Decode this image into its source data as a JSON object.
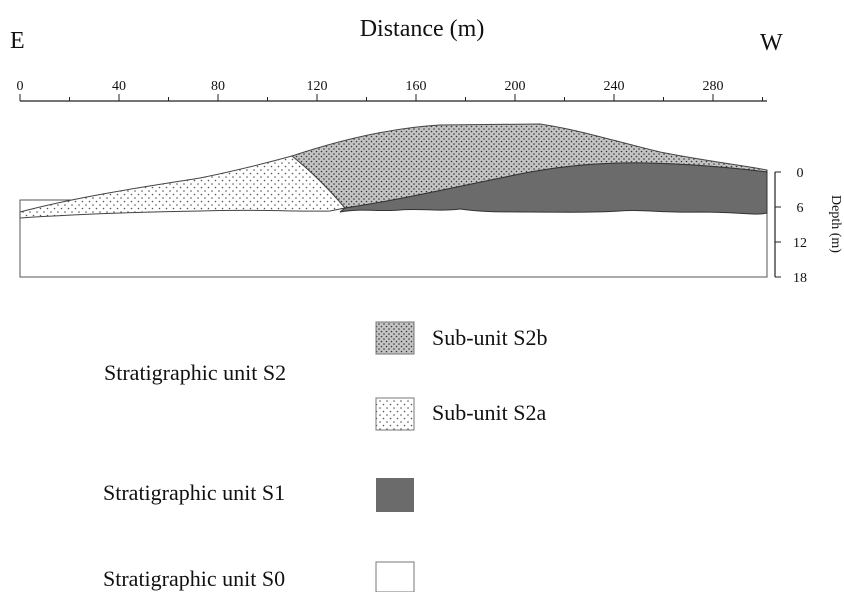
{
  "header": {
    "left": "E",
    "title": "Distance (m)",
    "right": "W"
  },
  "x_axis": {
    "ticks": [
      "0",
      "40",
      "80",
      "120",
      "160",
      "200",
      "240",
      "280"
    ]
  },
  "depth_axis": {
    "label": "Depth (m)",
    "ticks": [
      "0",
      "6",
      "12",
      "18"
    ]
  },
  "legend": [
    {
      "label": "Stratigraphic unit S2",
      "items": [
        {
          "label": "Sub-unit S2b"
        },
        {
          "label": "Sub-unit S2a"
        }
      ]
    },
    {
      "label": "Stratigraphic unit S1"
    },
    {
      "label": "Stratigraphic unit S0"
    }
  ]
}
